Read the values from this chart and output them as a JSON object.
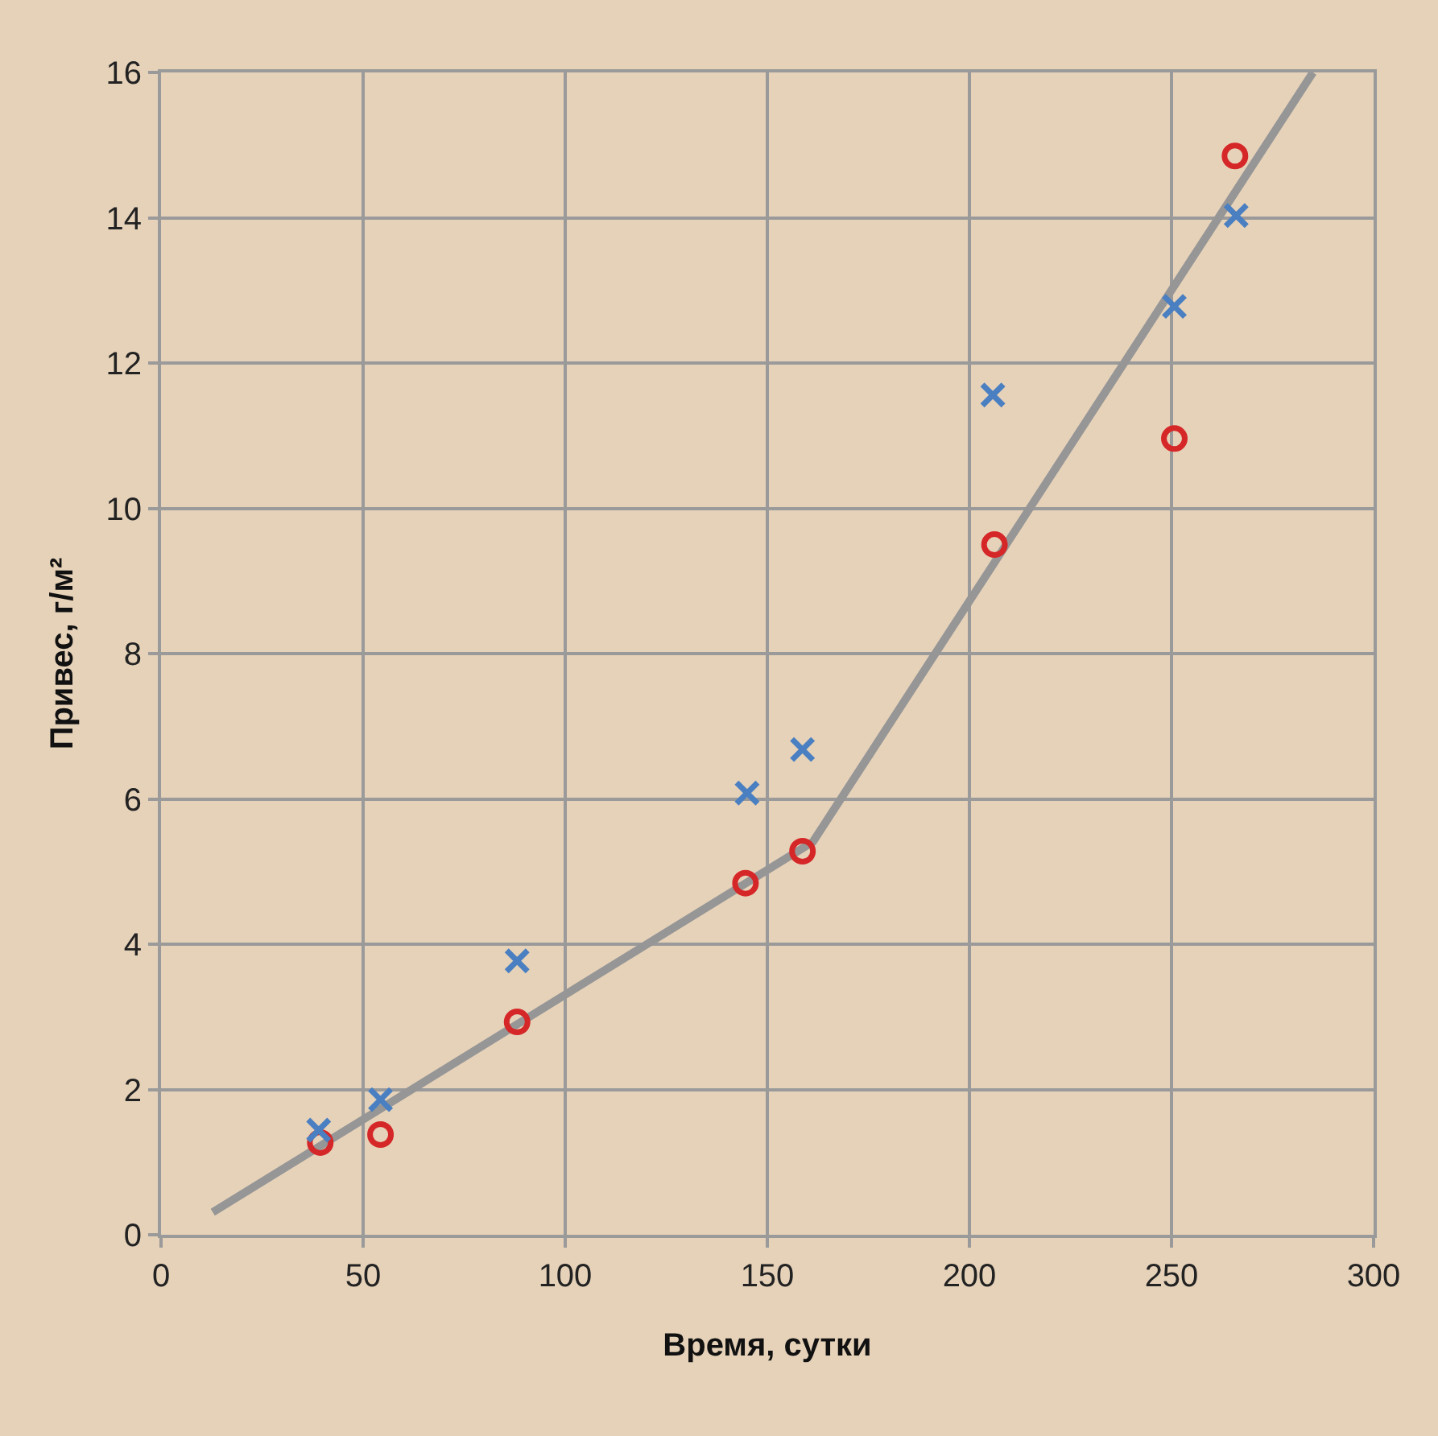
{
  "chart_data": {
    "type": "scatter",
    "xlabel": "Время, сутки",
    "ylabel": "Привес, г/м²",
    "xlim": [
      0,
      300
    ],
    "xticks": [
      0,
      50,
      100,
      150,
      200,
      250,
      300
    ],
    "ylim": [
      0,
      16
    ],
    "yticks": [
      0,
      2,
      4,
      6,
      8,
      10,
      12,
      14,
      16
    ],
    "grid": true,
    "series": [
      {
        "marker": "circle",
        "color": "#d62728",
        "x": [
          39.4,
          54.3,
          88.1,
          144.6,
          158.7,
          206.2,
          250.7,
          265.7
        ],
        "values": [
          1.27,
          1.38,
          2.93,
          4.84,
          5.28,
          9.5,
          10.96,
          14.85
        ]
      },
      {
        "marker": "cross",
        "color": "#4a7fc1",
        "x": [
          39.0,
          54.3,
          88.1,
          145.0,
          158.7,
          205.8,
          250.7,
          266.0
        ],
        "values": [
          1.44,
          1.86,
          3.77,
          6.08,
          6.68,
          11.56,
          12.78,
          14.03
        ]
      },
      {
        "type": "line",
        "marker": "none",
        "color": "#969696",
        "x": [
          12.8,
          161.3,
          285.0
        ],
        "values": [
          0.31,
          5.41,
          16.0
        ]
      }
    ]
  }
}
